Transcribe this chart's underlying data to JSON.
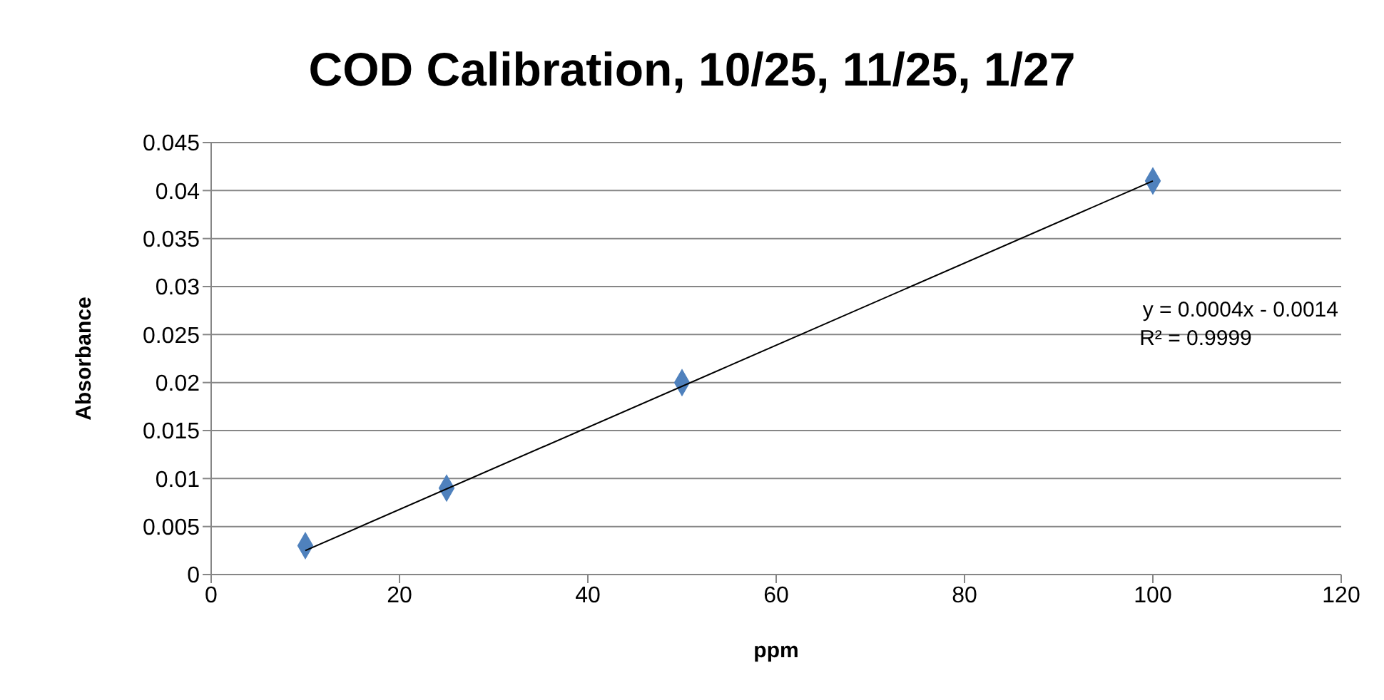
{
  "chart_data": {
    "type": "scatter",
    "title": "COD Calibration, 10/25, 11/25, 1/27",
    "xlabel": "ppm",
    "ylabel": "Absorbance",
    "x": [
      10,
      25,
      50,
      100
    ],
    "series": [
      {
        "type": "scatter",
        "color": "#4f81bd",
        "values": [
          0.003,
          0.009,
          0.02,
          0.041
        ],
        "marker": "diamond"
      },
      {
        "type": "line",
        "color": "#000000",
        "x": [
          10,
          100
        ],
        "values": [
          0.0025,
          0.041
        ],
        "marker": "none"
      }
    ],
    "xlim": [
      0,
      120
    ],
    "xticks": [
      0,
      20,
      40,
      60,
      80,
      100,
      120
    ],
    "ylim": [
      0,
      0.045
    ],
    "yticks": [
      0,
      0.005,
      0.01,
      0.015,
      0.02,
      0.025,
      0.03,
      0.035,
      0.04,
      0.045
    ],
    "grid": "y",
    "annotations": [
      "y = 0.0004x - 0.0014",
      "R² = 0.9999"
    ]
  }
}
